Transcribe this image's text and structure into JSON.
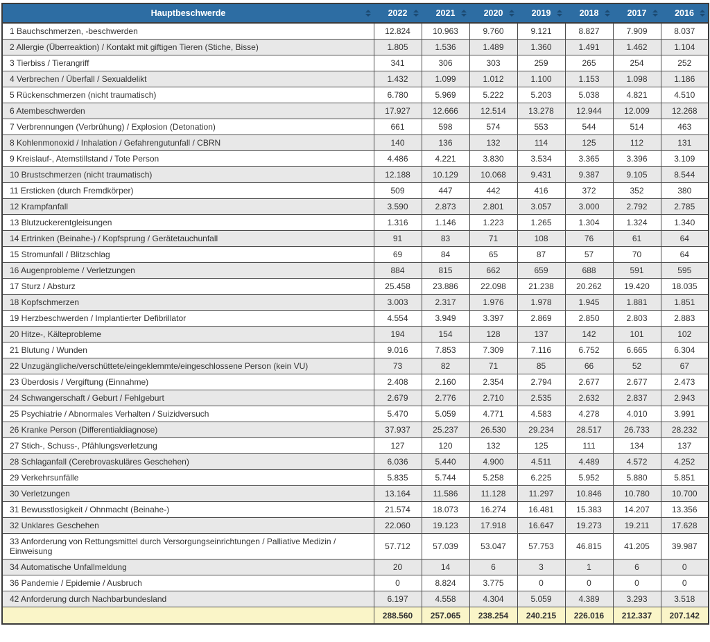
{
  "colors": {
    "header_bg": "#2d6da3",
    "header_text": "#ffffff",
    "sort_icon": "#1b4a72",
    "row_alt_bg": "#e8e8e8",
    "total_row_bg": "#faf5c8",
    "border": "#4d4d4d",
    "body_text": "#333333"
  },
  "table": {
    "header": {
      "label_col": "Hauptbeschwerde",
      "year_cols": [
        "2022",
        "2021",
        "2020",
        "2019",
        "2018",
        "2017",
        "2016"
      ]
    },
    "rows": [
      {
        "label": "1 Bauchschmerzen, -beschwerden",
        "values": [
          "12.824",
          "10.963",
          "9.760",
          "9.121",
          "8.827",
          "7.909",
          "8.037"
        ]
      },
      {
        "label": "2 Allergie (Überreaktion) / Kontakt mit giftigen Tieren (Stiche, Bisse)",
        "values": [
          "1.805",
          "1.536",
          "1.489",
          "1.360",
          "1.491",
          "1.462",
          "1.104"
        ]
      },
      {
        "label": "3 Tierbiss / Tierangriff",
        "values": [
          "341",
          "306",
          "303",
          "259",
          "265",
          "254",
          "252"
        ]
      },
      {
        "label": "4 Verbrechen / Überfall / Sexualdelikt",
        "values": [
          "1.432",
          "1.099",
          "1.012",
          "1.100",
          "1.153",
          "1.098",
          "1.186"
        ]
      },
      {
        "label": "5 Rückenschmerzen (nicht traumatisch)",
        "values": [
          "6.780",
          "5.969",
          "5.222",
          "5.203",
          "5.038",
          "4.821",
          "4.510"
        ]
      },
      {
        "label": "6 Atembeschwerden",
        "values": [
          "17.927",
          "12.666",
          "12.514",
          "13.278",
          "12.944",
          "12.009",
          "12.268"
        ]
      },
      {
        "label": "7 Verbrennungen (Verbrühung) / Explosion (Detonation)",
        "values": [
          "661",
          "598",
          "574",
          "553",
          "544",
          "514",
          "463"
        ]
      },
      {
        "label": "8 Kohlenmonoxid / Inhalation / Gefahrengutunfall / CBRN",
        "values": [
          "140",
          "136",
          "132",
          "114",
          "125",
          "112",
          "131"
        ]
      },
      {
        "label": "9 Kreislauf-, Atemstillstand / Tote Person",
        "values": [
          "4.486",
          "4.221",
          "3.830",
          "3.534",
          "3.365",
          "3.396",
          "3.109"
        ]
      },
      {
        "label": "10 Brustschmerzen (nicht traumatisch)",
        "values": [
          "12.188",
          "10.129",
          "10.068",
          "9.431",
          "9.387",
          "9.105",
          "8.544"
        ]
      },
      {
        "label": "11 Ersticken (durch Fremdkörper)",
        "values": [
          "509",
          "447",
          "442",
          "416",
          "372",
          "352",
          "380"
        ]
      },
      {
        "label": "12 Krampfanfall",
        "values": [
          "3.590",
          "2.873",
          "2.801",
          "3.057",
          "3.000",
          "2.792",
          "2.785"
        ]
      },
      {
        "label": "13 Blutzuckerentgleisungen",
        "values": [
          "1.316",
          "1.146",
          "1.223",
          "1.265",
          "1.304",
          "1.324",
          "1.340"
        ]
      },
      {
        "label": "14 Ertrinken (Beinahe-) / Kopfsprung / Gerätetauchunfall",
        "values": [
          "91",
          "83",
          "71",
          "108",
          "76",
          "61",
          "64"
        ]
      },
      {
        "label": "15 Stromunfall / Blitzschlag",
        "values": [
          "69",
          "84",
          "65",
          "87",
          "57",
          "70",
          "64"
        ]
      },
      {
        "label": "16 Augenprobleme / Verletzungen",
        "values": [
          "884",
          "815",
          "662",
          "659",
          "688",
          "591",
          "595"
        ]
      },
      {
        "label": "17 Sturz / Absturz",
        "values": [
          "25.458",
          "23.886",
          "22.098",
          "21.238",
          "20.262",
          "19.420",
          "18.035"
        ]
      },
      {
        "label": "18 Kopfschmerzen",
        "values": [
          "3.003",
          "2.317",
          "1.976",
          "1.978",
          "1.945",
          "1.881",
          "1.851"
        ]
      },
      {
        "label": "19 Herzbeschwerden / Implantierter Defibrillator",
        "values": [
          "4.554",
          "3.949",
          "3.397",
          "2.869",
          "2.850",
          "2.803",
          "2.883"
        ]
      },
      {
        "label": "20 Hitze-, Kälteprobleme",
        "values": [
          "194",
          "154",
          "128",
          "137",
          "142",
          "101",
          "102"
        ]
      },
      {
        "label": "21 Blutung / Wunden",
        "values": [
          "9.016",
          "7.853",
          "7.309",
          "7.116",
          "6.752",
          "6.665",
          "6.304"
        ]
      },
      {
        "label": "22 Unzugängliche/verschüttete/eingeklemmte/eingeschlossene Person (kein VU)",
        "values": [
          "73",
          "82",
          "71",
          "85",
          "66",
          "52",
          "67"
        ]
      },
      {
        "label": "23 Überdosis / Vergiftung (Einnahme)",
        "values": [
          "2.408",
          "2.160",
          "2.354",
          "2.794",
          "2.677",
          "2.677",
          "2.473"
        ]
      },
      {
        "label": "24 Schwangerschaft / Geburt / Fehlgeburt",
        "values": [
          "2.679",
          "2.776",
          "2.710",
          "2.535",
          "2.632",
          "2.837",
          "2.943"
        ]
      },
      {
        "label": "25 Psychiatrie / Abnormales Verhalten / Suizidversuch",
        "values": [
          "5.470",
          "5.059",
          "4.771",
          "4.583",
          "4.278",
          "4.010",
          "3.991"
        ]
      },
      {
        "label": "26 Kranke Person (Differentialdiagnose)",
        "values": [
          "37.937",
          "25.237",
          "26.530",
          "29.234",
          "28.517",
          "26.733",
          "28.232"
        ]
      },
      {
        "label": "27 Stich-, Schuss-, Pfählungsverletzung",
        "values": [
          "127",
          "120",
          "132",
          "125",
          "111",
          "134",
          "137"
        ]
      },
      {
        "label": "28 Schlaganfall (Cerebrovaskuläres Geschehen)",
        "values": [
          "6.036",
          "5.440",
          "4.900",
          "4.511",
          "4.489",
          "4.572",
          "4.252"
        ]
      },
      {
        "label": "29 Verkehrsunfälle",
        "values": [
          "5.835",
          "5.744",
          "5.258",
          "6.225",
          "5.952",
          "5.880",
          "5.851"
        ]
      },
      {
        "label": "30 Verletzungen",
        "values": [
          "13.164",
          "11.586",
          "11.128",
          "11.297",
          "10.846",
          "10.780",
          "10.700"
        ]
      },
      {
        "label": "31 Bewusstlosigkeit / Ohnmacht (Beinahe-)",
        "values": [
          "21.574",
          "18.073",
          "16.274",
          "16.481",
          "15.383",
          "14.207",
          "13.356"
        ]
      },
      {
        "label": "32 Unklares Geschehen",
        "values": [
          "22.060",
          "19.123",
          "17.918",
          "16.647",
          "19.273",
          "19.211",
          "17.628"
        ]
      },
      {
        "label": "33 Anforderung von Rettungsmittel durch Versorgungseinrichtungen / Palliative Medizin / Einweisung",
        "values": [
          "57.712",
          "57.039",
          "53.047",
          "57.753",
          "46.815",
          "41.205",
          "39.987"
        ]
      },
      {
        "label": "34 Automatische Unfallmeldung",
        "values": [
          "20",
          "14",
          "6",
          "3",
          "1",
          "6",
          "0"
        ]
      },
      {
        "label": "36 Pandemie / Epidemie / Ausbruch",
        "values": [
          "0",
          "8.824",
          "3.775",
          "0",
          "0",
          "0",
          "0"
        ]
      },
      {
        "label": "42 Anforderung durch Nachbarbundesland",
        "values": [
          "6.197",
          "4.558",
          "4.304",
          "5.059",
          "4.389",
          "3.293",
          "3.518"
        ]
      }
    ],
    "total": {
      "label": "",
      "values": [
        "288.560",
        "257.065",
        "238.254",
        "240.215",
        "226.016",
        "212.337",
        "207.142"
      ]
    }
  }
}
